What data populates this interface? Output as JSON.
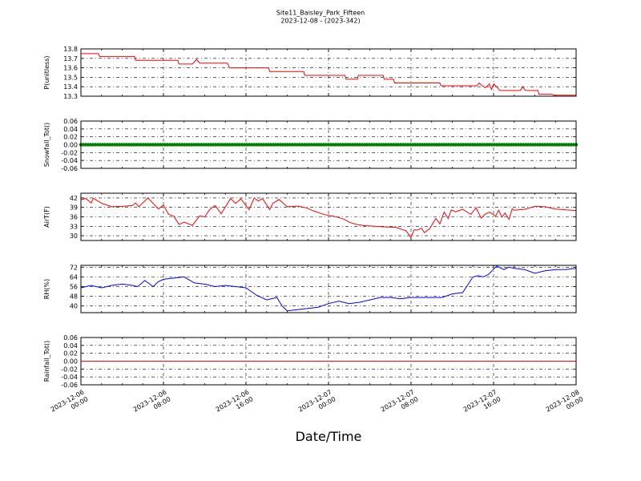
{
  "title": [
    "Site11_Baisley_Park_Fifteen",
    "2023-12-08 - (2023-342)"
  ],
  "xlabel": "Date/Time",
  "x_ticks": [
    {
      "hours": 0,
      "lines": [
        "2023-12-06",
        "00:00"
      ]
    },
    {
      "hours": 8,
      "lines": [
        "2023-12-06",
        "08:00"
      ]
    },
    {
      "hours": 16,
      "lines": [
        "2023-12-06",
        "16:00"
      ]
    },
    {
      "hours": 24,
      "lines": [
        "2023-12-07",
        "00:00"
      ]
    },
    {
      "hours": 32,
      "lines": [
        "2023-12-07",
        "08:00"
      ]
    },
    {
      "hours": 40,
      "lines": [
        "2023-12-07",
        "16:00"
      ]
    },
    {
      "hours": 48,
      "lines": [
        "2023-12-08",
        "00:00"
      ]
    }
  ],
  "chart_data": [
    {
      "type": "line",
      "ylabel": "P(unitless)",
      "ylim": [
        13.3,
        13.8
      ],
      "yticks": [
        13.3,
        13.4,
        13.5,
        13.6,
        13.7,
        13.8
      ],
      "tick_decimals": 1,
      "xlim": [
        "2023-12-06 00:00",
        "2023-12-08 00:00"
      ],
      "grid": true,
      "color": "#ff0000",
      "x_hours": [
        0,
        1.7,
        1.8,
        5.2,
        5.3,
        9.4,
        9.5,
        10.8,
        11.2,
        11.5,
        14.2,
        14.4,
        18.2,
        18.3,
        21.6,
        21.7,
        25.6,
        25.7,
        26.8,
        26.9,
        29.3,
        29.4,
        30.3,
        30.4,
        34.8,
        34.9,
        38.4,
        38.6,
        38.9,
        39.2,
        39.6,
        39.8,
        40.0,
        40.3,
        40.6,
        42.6,
        42.8,
        43.1,
        44.3,
        44.4,
        45.7,
        45.8,
        48
      ],
      "values": [
        13.75,
        13.75,
        13.72,
        13.72,
        13.68,
        13.68,
        13.64,
        13.64,
        13.69,
        13.65,
        13.65,
        13.6,
        13.6,
        13.56,
        13.56,
        13.52,
        13.52,
        13.48,
        13.48,
        13.52,
        13.52,
        13.48,
        13.48,
        13.44,
        13.44,
        13.41,
        13.41,
        13.44,
        13.41,
        13.39,
        13.43,
        13.37,
        13.43,
        13.4,
        13.36,
        13.36,
        13.4,
        13.36,
        13.36,
        13.32,
        13.32,
        13.31,
        13.31
      ]
    },
    {
      "type": "line",
      "ylabel": "Snowfall_Tot()",
      "ylim": [
        -0.06,
        0.06
      ],
      "yticks": [
        -0.06,
        -0.04,
        -0.02,
        0.0,
        0.02,
        0.04,
        0.06
      ],
      "tick_decimals": 2,
      "xlim": [
        "2023-12-06 00:00",
        "2023-12-08 00:00"
      ],
      "grid": true,
      "color": "#008000",
      "markers": true,
      "x_hours": [
        0,
        48
      ],
      "values": [
        0.0,
        0.0
      ]
    },
    {
      "type": "line",
      "ylabel": "AirT(F)",
      "ylim": [
        28.5,
        43.5
      ],
      "yticks": [
        30,
        33,
        36,
        39,
        42
      ],
      "tick_decimals": 0,
      "xlim": [
        "2023-12-06 00:00",
        "2023-12-08 00:00"
      ],
      "grid": true,
      "color": "#ff0000",
      "x_hours": [
        0,
        0.5,
        1.0,
        1.2,
        2.0,
        3.0,
        4.0,
        5.0,
        5.3,
        5.6,
        6.5,
        7.5,
        8.0,
        8.5,
        9.0,
        9.5,
        10.0,
        10.8,
        11.5,
        12.0,
        12.5,
        13.0,
        13.6,
        14.5,
        15.0,
        15.5,
        16.3,
        16.8,
        17.2,
        17.6,
        18.3,
        18.6,
        19.2,
        20.0,
        21.0,
        21.8,
        22.6,
        23.6,
        24.5,
        25.5,
        26.0,
        26.7,
        27.5,
        28.5,
        29.5,
        30.5,
        31.5,
        32.0,
        32.3,
        32.6,
        33.0,
        33.3,
        33.8,
        34.4,
        34.8,
        35.2,
        35.6,
        35.9,
        36.3,
        37.0,
        37.8,
        38.3,
        38.8,
        39.2,
        39.6,
        40.2,
        40.5,
        40.8,
        41.1,
        41.5,
        41.8,
        42.0,
        43.0,
        44.0,
        45.0,
        46.0,
        47.0,
        48.0
      ],
      "values": [
        41.5,
        41.8,
        40.4,
        41.9,
        40.3,
        39.2,
        39.3,
        39.6,
        40.4,
        39.2,
        42.0,
        38.5,
        39.7,
        36.8,
        36.2,
        33.6,
        34.3,
        33.3,
        36.3,
        36.0,
        38.4,
        39.6,
        37.0,
        41.8,
        40.3,
        41.7,
        38.3,
        42.0,
        41.0,
        41.8,
        38.3,
        40.3,
        41.5,
        39.2,
        39.4,
        38.9,
        37.8,
        36.7,
        36.2,
        35.3,
        34.3,
        33.6,
        33.2,
        33.0,
        32.8,
        32.7,
        31.6,
        29.5,
        31.9,
        31.8,
        32.4,
        31.0,
        32.2,
        35.5,
        33.8,
        37.5,
        35.5,
        38.2,
        37.6,
        38.4,
        36.8,
        38.9,
        35.6,
        36.9,
        37.5,
        36.2,
        38.1,
        35.9,
        37.2,
        35.2,
        38.6,
        38.1,
        38.4,
        39.3,
        39.2,
        38.5,
        38.2,
        38.0
      ]
    },
    {
      "type": "line",
      "ylabel": "RH(%)",
      "ylim": [
        34.5,
        73.5
      ],
      "yticks": [
        40,
        48,
        56,
        64,
        72
      ],
      "tick_decimals": 0,
      "xlim": [
        "2023-12-06 00:00",
        "2023-12-08 00:00"
      ],
      "grid": true,
      "color": "#0000ff",
      "x_hours": [
        0,
        1.0,
        2.0,
        3.0,
        4.0,
        5.0,
        5.5,
        6.2,
        7.0,
        7.5,
        8.0,
        9.0,
        10.0,
        10.4,
        11.0,
        12.0,
        13.0,
        14.0,
        15.0,
        16.0,
        16.5,
        17.0,
        18.0,
        18.5,
        19.0,
        19.5,
        20.0,
        21.0,
        22.0,
        23.0,
        24.0,
        25.0,
        26.0,
        27.0,
        28.0,
        29.0,
        30.0,
        31.0,
        32.0,
        33.0,
        34.0,
        35.0,
        36.0,
        37.0,
        38.0,
        38.5,
        39.0,
        39.5,
        40.3,
        41.0,
        41.5,
        42.0,
        43.0,
        44.0,
        45.0,
        46.0,
        47.0,
        48.0
      ],
      "values": [
        55,
        57,
        55,
        57,
        58,
        57,
        56,
        61,
        56,
        60,
        62,
        63,
        64,
        62,
        59,
        58,
        56,
        57,
        56,
        55,
        52,
        49,
        45,
        46,
        47,
        40,
        36,
        37,
        38,
        39,
        42,
        44,
        42,
        43,
        45,
        47,
        47,
        46,
        47,
        47,
        47,
        47,
        50,
        51,
        64,
        65,
        64,
        66,
        73,
        70,
        72,
        71,
        70,
        67,
        69,
        70,
        70,
        71
      ]
    },
    {
      "type": "line",
      "ylabel": "Rainfall_Tot()",
      "ylim": [
        -0.06,
        0.06
      ],
      "yticks": [
        -0.06,
        -0.04,
        -0.02,
        0.0,
        0.02,
        0.04,
        0.06
      ],
      "tick_decimals": 2,
      "xlim": [
        "2023-12-06 00:00",
        "2023-12-08 00:00"
      ],
      "grid": true,
      "color": "#ff0000",
      "x_hours": [
        0,
        48
      ],
      "values": [
        0.0,
        0.0
      ]
    }
  ]
}
